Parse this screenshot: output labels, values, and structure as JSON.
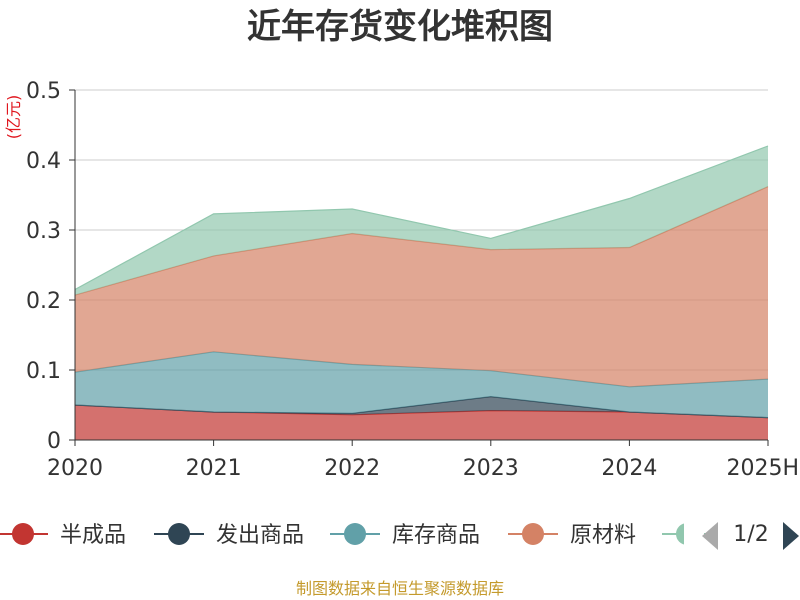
{
  "chart_data": {
    "type": "area",
    "stacked": true,
    "title": "近年存货变化堆积图",
    "unit": "(亿元)",
    "categories": [
      "2020",
      "2021",
      "2022",
      "2023",
      "2024",
      "2025H"
    ],
    "ylim": [
      0,
      0.5
    ],
    "yticks": [
      "0",
      "0.1",
      "0.2",
      "0.3",
      "0.4",
      "0.5"
    ],
    "grid": true,
    "legend_position": "bottom",
    "series": [
      {
        "name": "半成品",
        "color": "#c23531",
        "values": [
          0.05,
          0.04,
          0.036,
          0.042,
          0.04,
          0.032
        ]
      },
      {
        "name": "发出商品",
        "color": "#2f4554",
        "values": [
          0.0,
          0.0,
          0.002,
          0.02,
          0.0,
          0.0
        ]
      },
      {
        "name": "库存商品",
        "color": "#61a0a8",
        "values": [
          0.047,
          0.086,
          0.07,
          0.037,
          0.036,
          0.055
        ]
      },
      {
        "name": "原材料",
        "color": "#d48265",
        "values": [
          0.11,
          0.137,
          0.187,
          0.173,
          0.199,
          0.275
        ]
      },
      {
        "name": "",
        "color": "#91c7ae",
        "values": [
          0.008,
          0.06,
          0.035,
          0.016,
          0.07,
          0.058
        ]
      }
    ]
  },
  "legend": {
    "page_label": "1/2",
    "prev_icon_color": "#aaaaaa",
    "next_icon_color": "#2f4554"
  },
  "source_text": "制图数据来自恒生聚源数据库"
}
